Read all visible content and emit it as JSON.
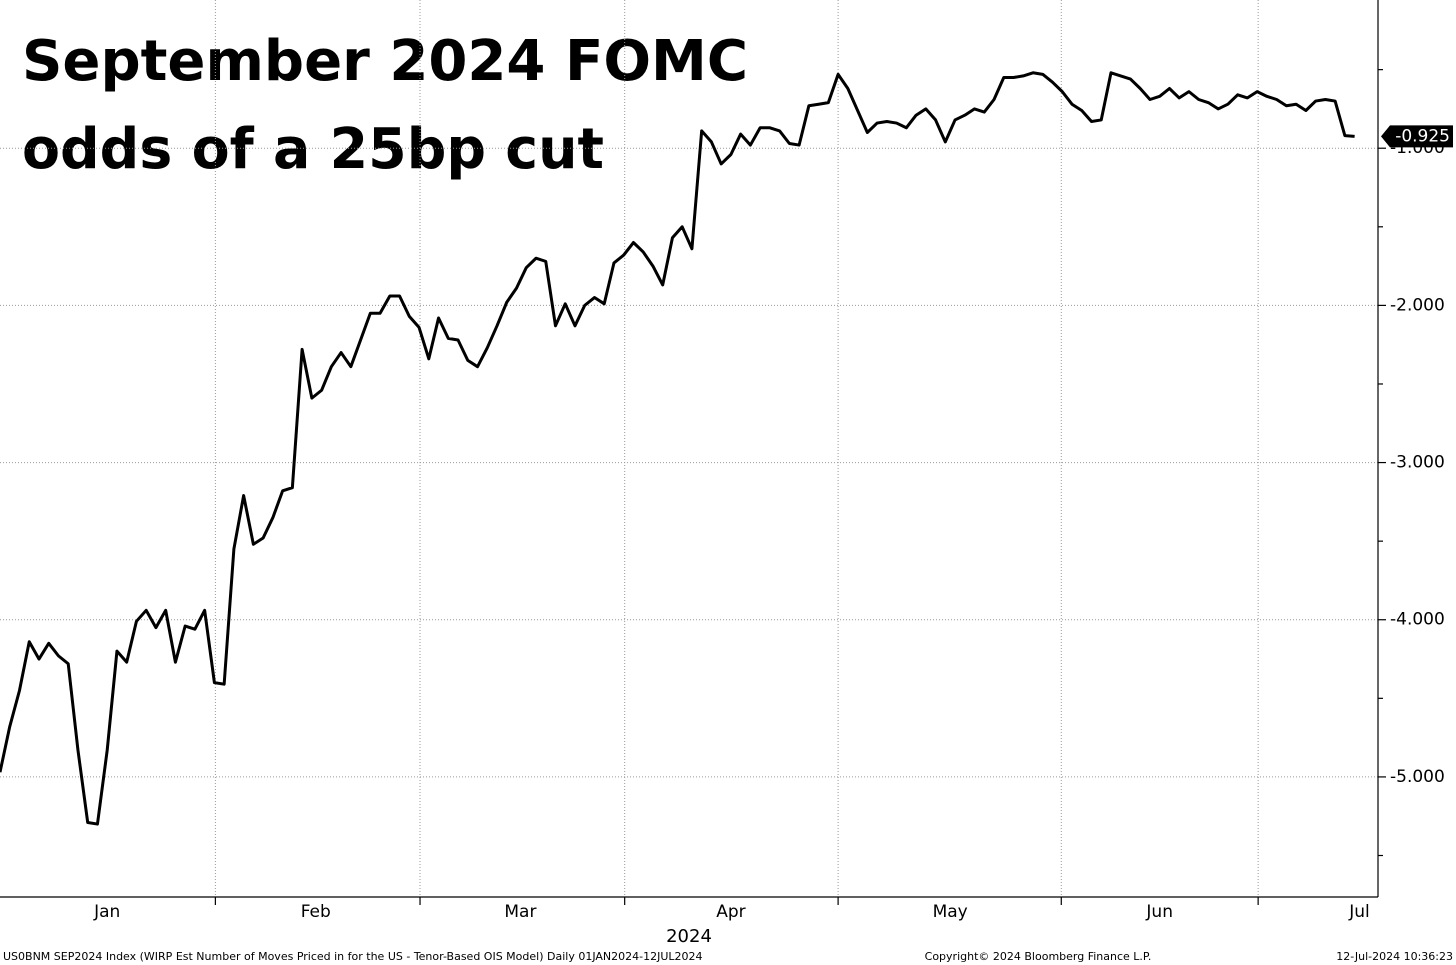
{
  "chart_data": {
    "type": "line",
    "title": [
      "September 2024 FOMC",
      "odds of a 25bp cut"
    ],
    "x_label": "2024",
    "footer": {
      "source": "US0BNM SEP2024 Index (WIRP Est Number of Moves Priced in for the US - Tenor-Based OIS Model)  Daily 01JAN2024-12JUL2024",
      "copyright": "Copyright© 2024 Bloomberg Finance L.P.",
      "timestamp": "12-Jul-2024 10:36:23"
    },
    "series": [
      {
        "color": "#000000",
        "values": [
          -4.97,
          -4.68,
          -4.45,
          -4.14,
          -4.25,
          -4.15,
          -4.23,
          -4.28,
          -4.83,
          -5.29,
          -5.3,
          -4.83,
          -4.2,
          -4.27,
          -4.01,
          -3.94,
          -4.05,
          -3.94,
          -4.27,
          -4.04,
          -4.06,
          -3.94,
          -4.4,
          -4.41,
          -3.55,
          -3.21,
          -3.52,
          -3.48,
          -3.35,
          -3.18,
          -3.16,
          -2.28,
          -2.59,
          -2.54,
          -2.39,
          -2.3,
          -2.39,
          -2.22,
          -2.05,
          -2.05,
          -1.94,
          -1.94,
          -2.07,
          -2.14,
          -2.34,
          -2.08,
          -2.21,
          -2.22,
          -2.35,
          -2.39,
          -2.27,
          -2.13,
          -1.98,
          -1.89,
          -1.76,
          -1.7,
          -1.72,
          -2.13,
          -1.99,
          -2.13,
          -2.0,
          -1.95,
          -1.99,
          -1.73,
          -1.68,
          -1.6,
          -1.66,
          -1.75,
          -1.87,
          -1.57,
          -1.5,
          -1.64,
          -0.89,
          -0.96,
          -1.1,
          -1.04,
          -0.91,
          -0.98,
          -0.87,
          -0.87,
          -0.89,
          -0.97,
          -0.98,
          -0.73,
          -0.72,
          -0.71,
          -0.53,
          -0.62,
          -0.76,
          -0.9,
          -0.84,
          -0.83,
          -0.84,
          -0.87,
          -0.79,
          -0.75,
          -0.82,
          -0.96,
          -0.82,
          -0.79,
          -0.75,
          -0.77,
          -0.69,
          -0.55,
          -0.55,
          -0.54,
          -0.52,
          -0.53,
          -0.58,
          -0.64,
          -0.72,
          -0.76,
          -0.83,
          -0.82,
          -0.52,
          -0.54,
          -0.56,
          -0.62,
          -0.69,
          -0.67,
          -0.62,
          -0.68,
          -0.64,
          -0.69,
          -0.71,
          -0.75,
          -0.72,
          -0.66,
          -0.68,
          -0.64,
          -0.67,
          -0.69,
          -0.73,
          -0.72,
          -0.76,
          -0.7,
          -0.69,
          -0.7,
          -0.92,
          -0.925
        ]
      }
    ],
    "last_value": {
      "value": -0.925,
      "label": "-0.925"
    },
    "xlim": [
      0,
      141.4
    ],
    "xticks": [
      {
        "value": 11.0,
        "label": "Jan"
      },
      {
        "value": 32.4,
        "label": "Feb"
      },
      {
        "value": 53.4,
        "label": "Mar"
      },
      {
        "value": 75.0,
        "label": "Apr"
      },
      {
        "value": 97.5,
        "label": "May"
      },
      {
        "value": 119.0,
        "label": "Jun"
      },
      {
        "value": 139.5,
        "label": "Jul"
      }
    ],
    "xgrid": [
      22.1,
      43.1,
      64.1,
      86.0,
      108.9,
      129.1
    ],
    "ylim": [
      -5.764,
      -0.057
    ],
    "yticks": [
      {
        "value": -1,
        "label": "-1.000"
      },
      {
        "value": -2,
        "label": "-2.000"
      },
      {
        "value": -3,
        "label": "-3.000"
      },
      {
        "value": -4,
        "label": "-4.000"
      },
      {
        "value": -5,
        "label": "-5.000"
      }
    ],
    "minor_yticks": [
      -0.5,
      -1.5,
      -2.5,
      -3.5,
      -4.5,
      -5.5
    ],
    "grid": true
  }
}
